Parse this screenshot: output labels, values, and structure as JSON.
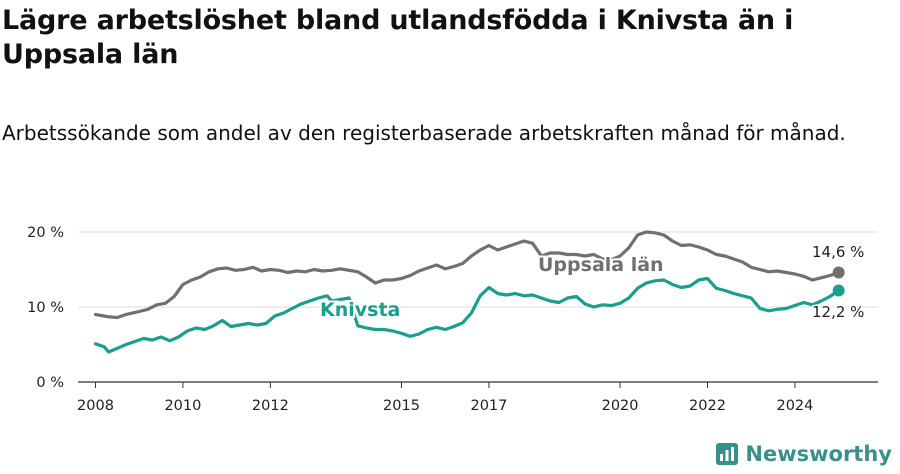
{
  "header": {
    "title": "Lägre arbetslöshet bland utlandsfödda i Knivsta än i Uppsala län",
    "subtitle": "Arbetssökande som andel av den registerbaserade arbetskraften månad för månad."
  },
  "brand": {
    "name": "Newsworthy",
    "icon": "newsworthy-logo-icon",
    "color": "#3b8f8a"
  },
  "chart_data": {
    "type": "line",
    "xlim": [
      2007.6,
      2025.9
    ],
    "ylim": [
      0,
      20
    ],
    "x_ticks": [
      {
        "value": 2008,
        "label": "2008"
      },
      {
        "value": 2010,
        "label": "2010"
      },
      {
        "value": 2012,
        "label": "2012"
      },
      {
        "value": 2015,
        "label": "2015"
      },
      {
        "value": 2017,
        "label": "2017"
      },
      {
        "value": 2020,
        "label": "2020"
      },
      {
        "value": 2022,
        "label": "2022"
      },
      {
        "value": 2024,
        "label": "2024"
      }
    ],
    "y_ticks": [
      {
        "value": 0,
        "label": "0 %"
      },
      {
        "value": 10,
        "label": "10 %"
      },
      {
        "value": 20,
        "label": "20 %"
      }
    ],
    "grid": "horizontal",
    "series": [
      {
        "name": "Uppsala län",
        "color": "#707070",
        "end_value": 14.6,
        "end_label": "14,6 %",
        "points": [
          [
            2008.0,
            9.0
          ],
          [
            2008.3,
            8.7
          ],
          [
            2008.5,
            8.6
          ],
          [
            2008.7,
            9.0
          ],
          [
            2009.0,
            9.4
          ],
          [
            2009.2,
            9.7
          ],
          [
            2009.4,
            10.3
          ],
          [
            2009.6,
            10.5
          ],
          [
            2009.8,
            11.4
          ],
          [
            2010.0,
            13.0
          ],
          [
            2010.2,
            13.6
          ],
          [
            2010.4,
            14.0
          ],
          [
            2010.6,
            14.7
          ],
          [
            2010.8,
            15.1
          ],
          [
            2011.0,
            15.2
          ],
          [
            2011.2,
            14.9
          ],
          [
            2011.4,
            15.0
          ],
          [
            2011.6,
            15.3
          ],
          [
            2011.8,
            14.8
          ],
          [
            2012.0,
            15.0
          ],
          [
            2012.2,
            14.9
          ],
          [
            2012.4,
            14.6
          ],
          [
            2012.6,
            14.8
          ],
          [
            2012.8,
            14.7
          ],
          [
            2013.0,
            15.0
          ],
          [
            2013.2,
            14.8
          ],
          [
            2013.4,
            14.9
          ],
          [
            2013.6,
            15.1
          ],
          [
            2013.8,
            14.9
          ],
          [
            2014.0,
            14.7
          ],
          [
            2014.2,
            14.0
          ],
          [
            2014.4,
            13.2
          ],
          [
            2014.6,
            13.6
          ],
          [
            2014.8,
            13.6
          ],
          [
            2015.0,
            13.8
          ],
          [
            2015.2,
            14.2
          ],
          [
            2015.4,
            14.8
          ],
          [
            2015.6,
            15.2
          ],
          [
            2015.8,
            15.6
          ],
          [
            2016.0,
            15.1
          ],
          [
            2016.2,
            15.4
          ],
          [
            2016.4,
            15.8
          ],
          [
            2016.6,
            16.8
          ],
          [
            2016.8,
            17.6
          ],
          [
            2017.0,
            18.2
          ],
          [
            2017.2,
            17.6
          ],
          [
            2017.4,
            18.0
          ],
          [
            2017.6,
            18.4
          ],
          [
            2017.8,
            18.8
          ],
          [
            2018.0,
            18.5
          ],
          [
            2018.2,
            16.8
          ],
          [
            2018.4,
            17.2
          ],
          [
            2018.6,
            17.2
          ],
          [
            2018.8,
            17.0
          ],
          [
            2019.0,
            17.0
          ],
          [
            2019.2,
            16.8
          ],
          [
            2019.4,
            17.0
          ],
          [
            2019.6,
            16.4
          ],
          [
            2019.8,
            16.3
          ],
          [
            2020.0,
            16.8
          ],
          [
            2020.2,
            17.9
          ],
          [
            2020.4,
            19.6
          ],
          [
            2020.6,
            20.0
          ],
          [
            2020.8,
            19.9
          ],
          [
            2021.0,
            19.6
          ],
          [
            2021.2,
            18.8
          ],
          [
            2021.4,
            18.2
          ],
          [
            2021.6,
            18.3
          ],
          [
            2021.8,
            18.0
          ],
          [
            2022.0,
            17.6
          ],
          [
            2022.2,
            17.0
          ],
          [
            2022.4,
            16.8
          ],
          [
            2022.6,
            16.4
          ],
          [
            2022.8,
            16.0
          ],
          [
            2023.0,
            15.3
          ],
          [
            2023.2,
            15.0
          ],
          [
            2023.4,
            14.7
          ],
          [
            2023.6,
            14.8
          ],
          [
            2023.8,
            14.6
          ],
          [
            2024.0,
            14.4
          ],
          [
            2024.2,
            14.1
          ],
          [
            2024.4,
            13.6
          ],
          [
            2024.6,
            13.9
          ],
          [
            2024.8,
            14.2
          ],
          [
            2025.0,
            14.6
          ]
        ]
      },
      {
        "name": "Knivsta",
        "color": "#1a9e8e",
        "end_value": 12.2,
        "end_label": "12,2 %",
        "points": [
          [
            2008.0,
            5.1
          ],
          [
            2008.2,
            4.7
          ],
          [
            2008.3,
            4.0
          ],
          [
            2008.5,
            4.5
          ],
          [
            2008.7,
            5.0
          ],
          [
            2008.9,
            5.4
          ],
          [
            2009.1,
            5.8
          ],
          [
            2009.3,
            5.6
          ],
          [
            2009.5,
            6.0
          ],
          [
            2009.7,
            5.5
          ],
          [
            2009.9,
            6.0
          ],
          [
            2010.1,
            6.8
          ],
          [
            2010.3,
            7.2
          ],
          [
            2010.5,
            7.0
          ],
          [
            2010.7,
            7.5
          ],
          [
            2010.9,
            8.2
          ],
          [
            2011.1,
            7.4
          ],
          [
            2011.3,
            7.6
          ],
          [
            2011.5,
            7.8
          ],
          [
            2011.7,
            7.6
          ],
          [
            2011.9,
            7.8
          ],
          [
            2012.1,
            8.8
          ],
          [
            2012.3,
            9.2
          ],
          [
            2012.5,
            9.8
          ],
          [
            2012.7,
            10.4
          ],
          [
            2012.9,
            10.8
          ],
          [
            2013.1,
            11.2
          ],
          [
            2013.3,
            11.5
          ],
          [
            2013.4,
            10.8
          ],
          [
            2013.6,
            11.0
          ],
          [
            2013.8,
            11.2
          ],
          [
            2014.0,
            7.5
          ],
          [
            2014.2,
            7.2
          ],
          [
            2014.4,
            7.0
          ],
          [
            2014.6,
            7.0
          ],
          [
            2014.8,
            6.8
          ],
          [
            2015.0,
            6.5
          ],
          [
            2015.2,
            6.1
          ],
          [
            2015.4,
            6.4
          ],
          [
            2015.6,
            7.0
          ],
          [
            2015.8,
            7.3
          ],
          [
            2016.0,
            7.0
          ],
          [
            2016.2,
            7.4
          ],
          [
            2016.4,
            7.9
          ],
          [
            2016.6,
            9.2
          ],
          [
            2016.8,
            11.5
          ],
          [
            2017.0,
            12.6
          ],
          [
            2017.2,
            11.8
          ],
          [
            2017.4,
            11.6
          ],
          [
            2017.6,
            11.8
          ],
          [
            2017.8,
            11.5
          ],
          [
            2018.0,
            11.6
          ],
          [
            2018.2,
            11.2
          ],
          [
            2018.4,
            10.8
          ],
          [
            2018.6,
            10.6
          ],
          [
            2018.8,
            11.2
          ],
          [
            2019.0,
            11.4
          ],
          [
            2019.2,
            10.4
          ],
          [
            2019.4,
            10.0
          ],
          [
            2019.6,
            10.3
          ],
          [
            2019.8,
            10.2
          ],
          [
            2020.0,
            10.5
          ],
          [
            2020.2,
            11.2
          ],
          [
            2020.4,
            12.5
          ],
          [
            2020.6,
            13.2
          ],
          [
            2020.8,
            13.5
          ],
          [
            2021.0,
            13.6
          ],
          [
            2021.2,
            13.0
          ],
          [
            2021.4,
            12.6
          ],
          [
            2021.6,
            12.8
          ],
          [
            2021.8,
            13.6
          ],
          [
            2022.0,
            13.8
          ],
          [
            2022.2,
            12.5
          ],
          [
            2022.4,
            12.2
          ],
          [
            2022.6,
            11.8
          ],
          [
            2022.8,
            11.5
          ],
          [
            2023.0,
            11.2
          ],
          [
            2023.2,
            9.8
          ],
          [
            2023.4,
            9.5
          ],
          [
            2023.6,
            9.7
          ],
          [
            2023.8,
            9.8
          ],
          [
            2024.0,
            10.2
          ],
          [
            2024.2,
            10.6
          ],
          [
            2024.4,
            10.3
          ],
          [
            2024.6,
            10.8
          ],
          [
            2024.8,
            11.4
          ],
          [
            2025.0,
            12.2
          ]
        ]
      }
    ]
  }
}
